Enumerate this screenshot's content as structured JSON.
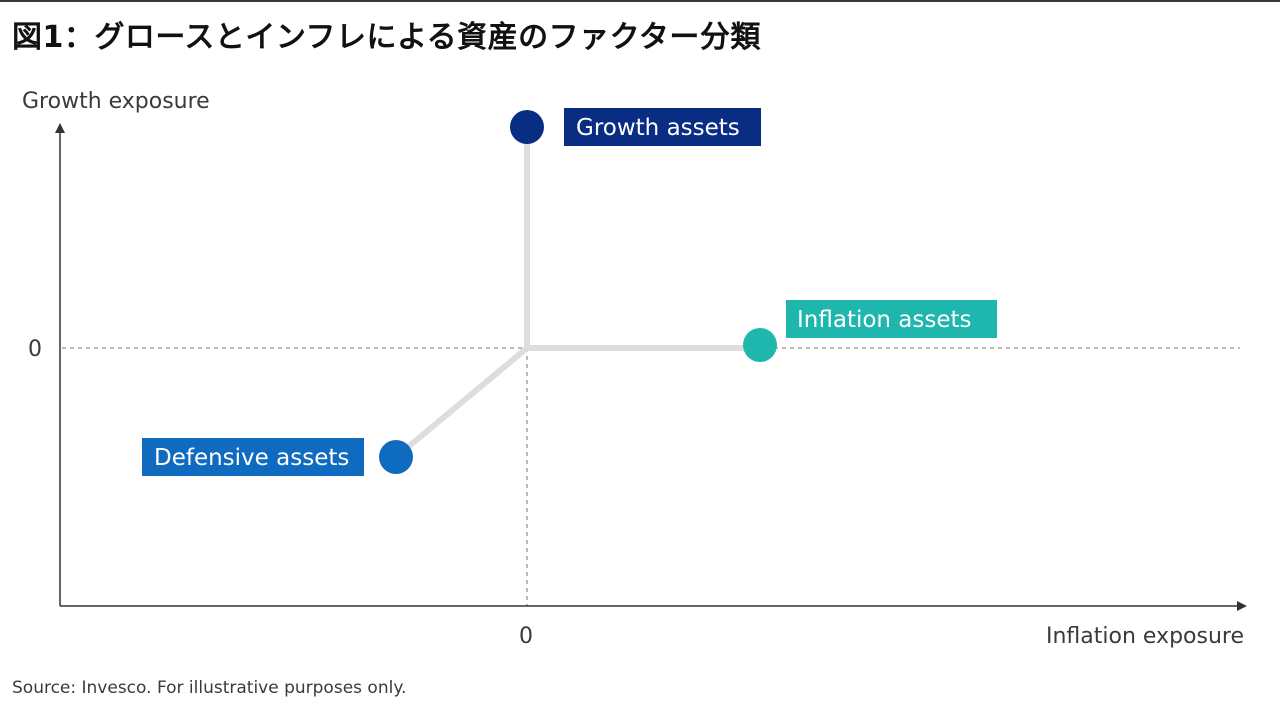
{
  "title": "図1：グロースとインフレによる資産のファクター分類",
  "source": "Source: Invesco. For illustrative purposes only.",
  "axes": {
    "y_label": "Growth exposure",
    "x_label": "Inflation exposure",
    "y_zero_label": "0",
    "x_zero_label": "0"
  },
  "colors": {
    "growth": "#0a2d84",
    "inflation": "#1fb6ad",
    "defensive": "#0f6bbf",
    "connector": "#dddddd",
    "axis": "#333333",
    "reference_line": "#777777"
  },
  "nodes": [
    {
      "label": "Growth assets",
      "color_key": "growth"
    },
    {
      "label": "Inflation assets",
      "color_key": "inflation"
    },
    {
      "label": "Defensive assets",
      "color_key": "defensive"
    }
  ]
}
